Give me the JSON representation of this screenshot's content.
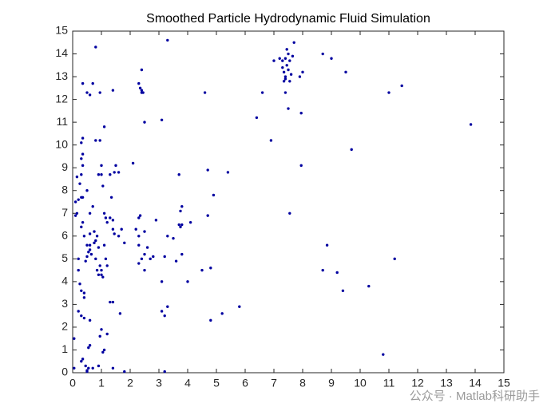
{
  "chart_data": {
    "type": "scatter",
    "title": "Smoothed Particle Hydrodynamic Fluid Simulation",
    "watermark": "公众号 · Matlab科研助手",
    "color": "#0000a0",
    "xlim": [
      0,
      15
    ],
    "ylim": [
      0,
      15
    ],
    "xticks": [
      0,
      1,
      2,
      3,
      4,
      5,
      6,
      7,
      8,
      9,
      10,
      11,
      12,
      13,
      14,
      15
    ],
    "yticks": [
      0,
      1,
      2,
      3,
      4,
      5,
      6,
      7,
      8,
      9,
      10,
      11,
      12,
      13,
      14,
      15
    ],
    "x": [
      0.05,
      0.05,
      0.1,
      0.1,
      0.15,
      0.2,
      0.15,
      0.25,
      0.3,
      0.3,
      0.35,
      0.2,
      0.2,
      0.25,
      0.3,
      0.4,
      0.4,
      0.2,
      0.3,
      0.4,
      0.3,
      0.35,
      0.45,
      0.5,
      0.5,
      0.55,
      0.6,
      0.55,
      0.6,
      0.3,
      0.35,
      0.4,
      0.3,
      0.35,
      0.3,
      0.35,
      0.35,
      0.35,
      0.5,
      0.6,
      0.7,
      0.5,
      0.45,
      0.5,
      0.5,
      0.55,
      0.6,
      0.6,
      0.65,
      0.6,
      0.6,
      0.7,
      0.75,
      0.8,
      0.75,
      0.8,
      0.85,
      0.9,
      0.85,
      0.9,
      0.95,
      1.0,
      1.0,
      0.8,
      0.95,
      0.8,
      0.95,
      1.0,
      1.05,
      1.0,
      0.9,
      1.1,
      1.1,
      1.15,
      1.2,
      1.1,
      1.15,
      1.2,
      1.05,
      1.0,
      0.95,
      1.05,
      1.1,
      1.2,
      0.9,
      0.7,
      1.3,
      1.4,
      1.3,
      1.4,
      1.4,
      1.45,
      1.35,
      1.5,
      1.45,
      1.6,
      1.3,
      1.4,
      1.6,
      1.7,
      1.8,
      1.65,
      1.8,
      1.4,
      2.1,
      2.2,
      2.35,
      2.3,
      2.3,
      2.3,
      2.4,
      2.3,
      2.5,
      2.5,
      2.6,
      2.7,
      2.8,
      2.9,
      2.5,
      2.3,
      2.35,
      2.4,
      2.4,
      2.45,
      2.4,
      2.5,
      3.1,
      3.3,
      3.2,
      3.3,
      3.5,
      3.6,
      3.8,
      3.7,
      3.75,
      3.8,
      3.75,
      3.8,
      3.7,
      4.0,
      4.1,
      3.1,
      3.1,
      3.2,
      3.3,
      3.2,
      4.5,
      4.6,
      4.7,
      4.7,
      4.8,
      4.8,
      4.9,
      5.2,
      5.4,
      5.8,
      6.4,
      6.6,
      6.9,
      7.0,
      7.2,
      7.3,
      7.3,
      7.35,
      7.4,
      7.35,
      7.4,
      7.45,
      7.4,
      7.5,
      7.45,
      7.5,
      7.55,
      7.4,
      7.5,
      7.55,
      7.6,
      7.65,
      7.7,
      7.9,
      8.0,
      7.55,
      7.95,
      7.95,
      8.7,
      8.7,
      8.85,
      9.0,
      9.2,
      9.4,
      9.5,
      9.7,
      10.3,
      10.8,
      11.0,
      11.2,
      11.45,
      13.85
    ],
    "values": [
      0.2,
      1.5,
      7.5,
      6.9,
      7.0,
      7.6,
      8.6,
      8.3,
      8.7,
      7.7,
      7.7,
      5.0,
      4.5,
      3.9,
      3.6,
      3.3,
      3.5,
      2.7,
      2.5,
      2.4,
      0.5,
      0.6,
      0.3,
      0.1,
      0.05,
      0.2,
      1.2,
      1.1,
      2.3,
      6.4,
      6.6,
      6.0,
      10.1,
      10.3,
      9.4,
      9.6,
      9.1,
      12.7,
      12.3,
      12.2,
      12.7,
      8.0,
      4.9,
      5.1,
      5.6,
      5.3,
      5.6,
      5.4,
      5.2,
      6.1,
      7.0,
      7.3,
      6.2,
      5.8,
      5.7,
      5.0,
      6.0,
      5.5,
      4.5,
      4.3,
      4.7,
      4.3,
      4.5,
      10.2,
      10.2,
      14.3,
      12.3,
      8.7,
      8.2,
      9.1,
      8.7,
      10.8,
      7.0,
      6.8,
      6.6,
      5.6,
      5.0,
      4.7,
      4.2,
      1.9,
      1.6,
      0.9,
      1.0,
      1.7,
      0.3,
      0.2,
      3.1,
      3.1,
      6.8,
      6.7,
      6.3,
      6.1,
      7.7,
      9.1,
      8.8,
      8.8,
      8.7,
      12.4,
      6.0,
      6.3,
      5.7,
      2.6,
      0.05,
      0.2,
      9.2,
      6.3,
      6.9,
      6.8,
      6.0,
      5.6,
      5.0,
      4.8,
      4.5,
      5.2,
      5.5,
      5.0,
      5.1,
      6.7,
      6.2,
      12.7,
      12.5,
      12.3,
      12.4,
      12.3,
      13.3,
      11.0,
      11.1,
      14.6,
      5.1,
      6.0,
      5.9,
      4.9,
      5.2,
      6.5,
      6.4,
      6.5,
      7.1,
      7.3,
      8.7,
      4.0,
      6.6,
      4.0,
      2.7,
      2.5,
      2.9,
      0.05,
      4.5,
      12.3,
      8.9,
      6.9,
      4.6,
      2.3,
      7.8,
      2.6,
      8.8,
      2.9,
      11.2,
      12.3,
      10.2,
      13.7,
      13.8,
      13.7,
      13.4,
      13.2,
      13.0,
      12.8,
      12.9,
      13.5,
      13.8,
      14.0,
      14.2,
      13.3,
      13.7,
      12.3,
      11.6,
      12.8,
      13.1,
      13.9,
      14.5,
      13.0,
      13.2,
      7.0,
      11.4,
      9.1,
      14.0,
      4.5,
      5.6,
      13.8,
      4.4,
      3.6,
      13.2,
      9.8,
      3.8,
      0.8,
      12.3,
      5.0,
      12.6,
      10.9
    ]
  }
}
